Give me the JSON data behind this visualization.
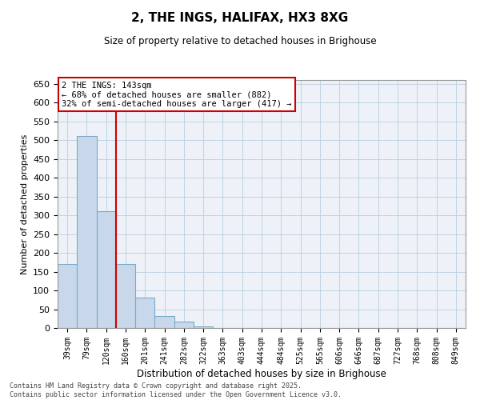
{
  "title": "2, THE INGS, HALIFAX, HX3 8XG",
  "subtitle": "Size of property relative to detached houses in Brighouse",
  "xlabel": "Distribution of detached houses by size in Brighouse",
  "ylabel": "Number of detached properties",
  "categories": [
    "39sqm",
    "79sqm",
    "120sqm",
    "160sqm",
    "201sqm",
    "241sqm",
    "282sqm",
    "322sqm",
    "363sqm",
    "403sqm",
    "444sqm",
    "484sqm",
    "525sqm",
    "565sqm",
    "606sqm",
    "646sqm",
    "687sqm",
    "727sqm",
    "768sqm",
    "808sqm",
    "849sqm"
  ],
  "values": [
    170,
    510,
    310,
    170,
    80,
    33,
    18,
    5,
    1,
    0,
    0,
    0,
    0,
    0,
    0,
    0,
    0,
    0,
    0,
    0,
    0
  ],
  "bar_color": "#c8d8ea",
  "bar_edge_color": "#7aaaca",
  "grid_color": "#b8cfe0",
  "background_color": "#eef2f8",
  "vline_x": 2.5,
  "vline_color": "#cc0000",
  "annotation_text": "2 THE INGS: 143sqm\n← 68% of detached houses are smaller (882)\n32% of semi-detached houses are larger (417) →",
  "annotation_box_color": "#cc0000",
  "ylim": [
    0,
    660
  ],
  "yticks": [
    0,
    50,
    100,
    150,
    200,
    250,
    300,
    350,
    400,
    450,
    500,
    550,
    600,
    650
  ],
  "footer_line1": "Contains HM Land Registry data © Crown copyright and database right 2025.",
  "footer_line2": "Contains public sector information licensed under the Open Government Licence v3.0."
}
